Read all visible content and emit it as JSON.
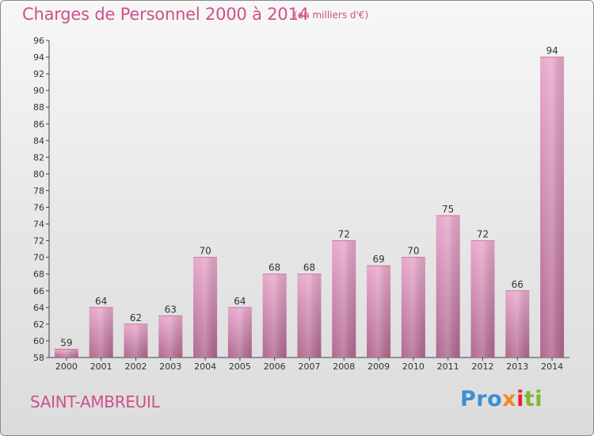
{
  "title": "Charges de Personnel 2000 à 2014",
  "subtitle": "(en milliers d'€)",
  "commune": "SAINT-AMBREUIL",
  "logo": {
    "p1": "Pro",
    "p2": "x",
    "p3": "i",
    "p4": "ti",
    "text": "Proxiti"
  },
  "colors": {
    "title": "#d0508a",
    "bar_top": "#e8a8cc",
    "bar_bottom": "#b06890"
  },
  "chart_data": {
    "type": "bar",
    "title": "Charges de Personnel 2000 à 2014",
    "subtitle": "(en milliers d'€)",
    "xlabel": "",
    "ylabel": "",
    "categories": [
      "2000",
      "2001",
      "2002",
      "2003",
      "2004",
      "2005",
      "2006",
      "2007",
      "2008",
      "2009",
      "2010",
      "2011",
      "2012",
      "2013",
      "2014"
    ],
    "values": [
      59,
      64,
      62,
      63,
      70,
      64,
      68,
      68,
      72,
      69,
      70,
      75,
      72,
      66,
      94
    ],
    "ylim": [
      58,
      96
    ],
    "yticks": [
      58,
      60,
      62,
      64,
      66,
      68,
      70,
      72,
      74,
      76,
      78,
      80,
      82,
      84,
      86,
      88,
      90,
      92,
      94,
      96
    ],
    "grid": false,
    "legend": "none"
  }
}
